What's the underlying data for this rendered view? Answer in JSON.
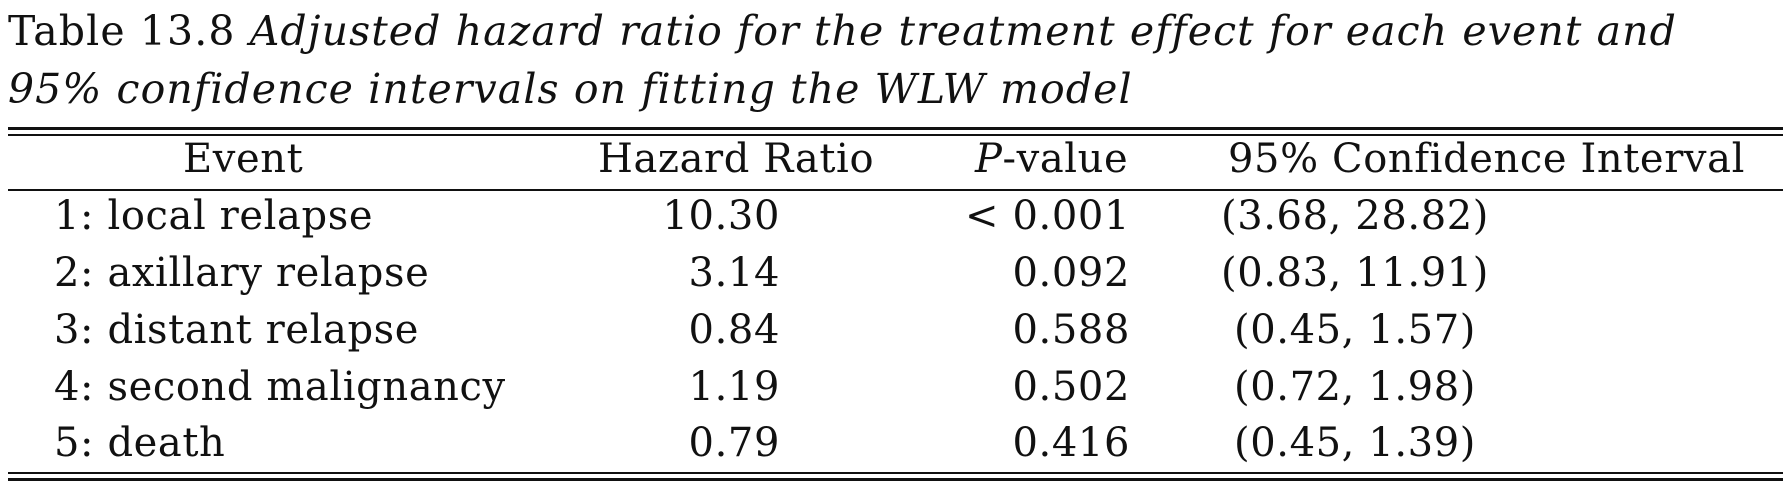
{
  "caption": {
    "label": "Table 13.8",
    "text": "Adjusted hazard ratio for the treatment effect for each event and 95% confidence intervals on fitting the WLW model"
  },
  "table": {
    "headers": {
      "event": "Event",
      "hazard_ratio": "Hazard Ratio",
      "p_value_italic": "P",
      "p_value_rest": "-value",
      "ci": "95% Confidence Interval"
    },
    "rows": [
      {
        "event": "1: local relapse",
        "hazard_ratio": "10.30",
        "p_value": "< 0.001",
        "ci": "(3.68, 28.82)"
      },
      {
        "event": "2: axillary relapse",
        "hazard_ratio": "3.14",
        "p_value": "0.092",
        "ci": "(0.83, 11.91)"
      },
      {
        "event": "3: distant relapse",
        "hazard_ratio": "0.84",
        "p_value": "0.588",
        "ci": "(0.45, 1.57)"
      },
      {
        "event": "4: second malignancy",
        "hazard_ratio": "1.19",
        "p_value": "0.502",
        "ci": "(0.72, 1.98)"
      },
      {
        "event": "5: death",
        "hazard_ratio": "0.79",
        "p_value": "0.416",
        "ci": "(0.45, 1.39)"
      }
    ]
  }
}
